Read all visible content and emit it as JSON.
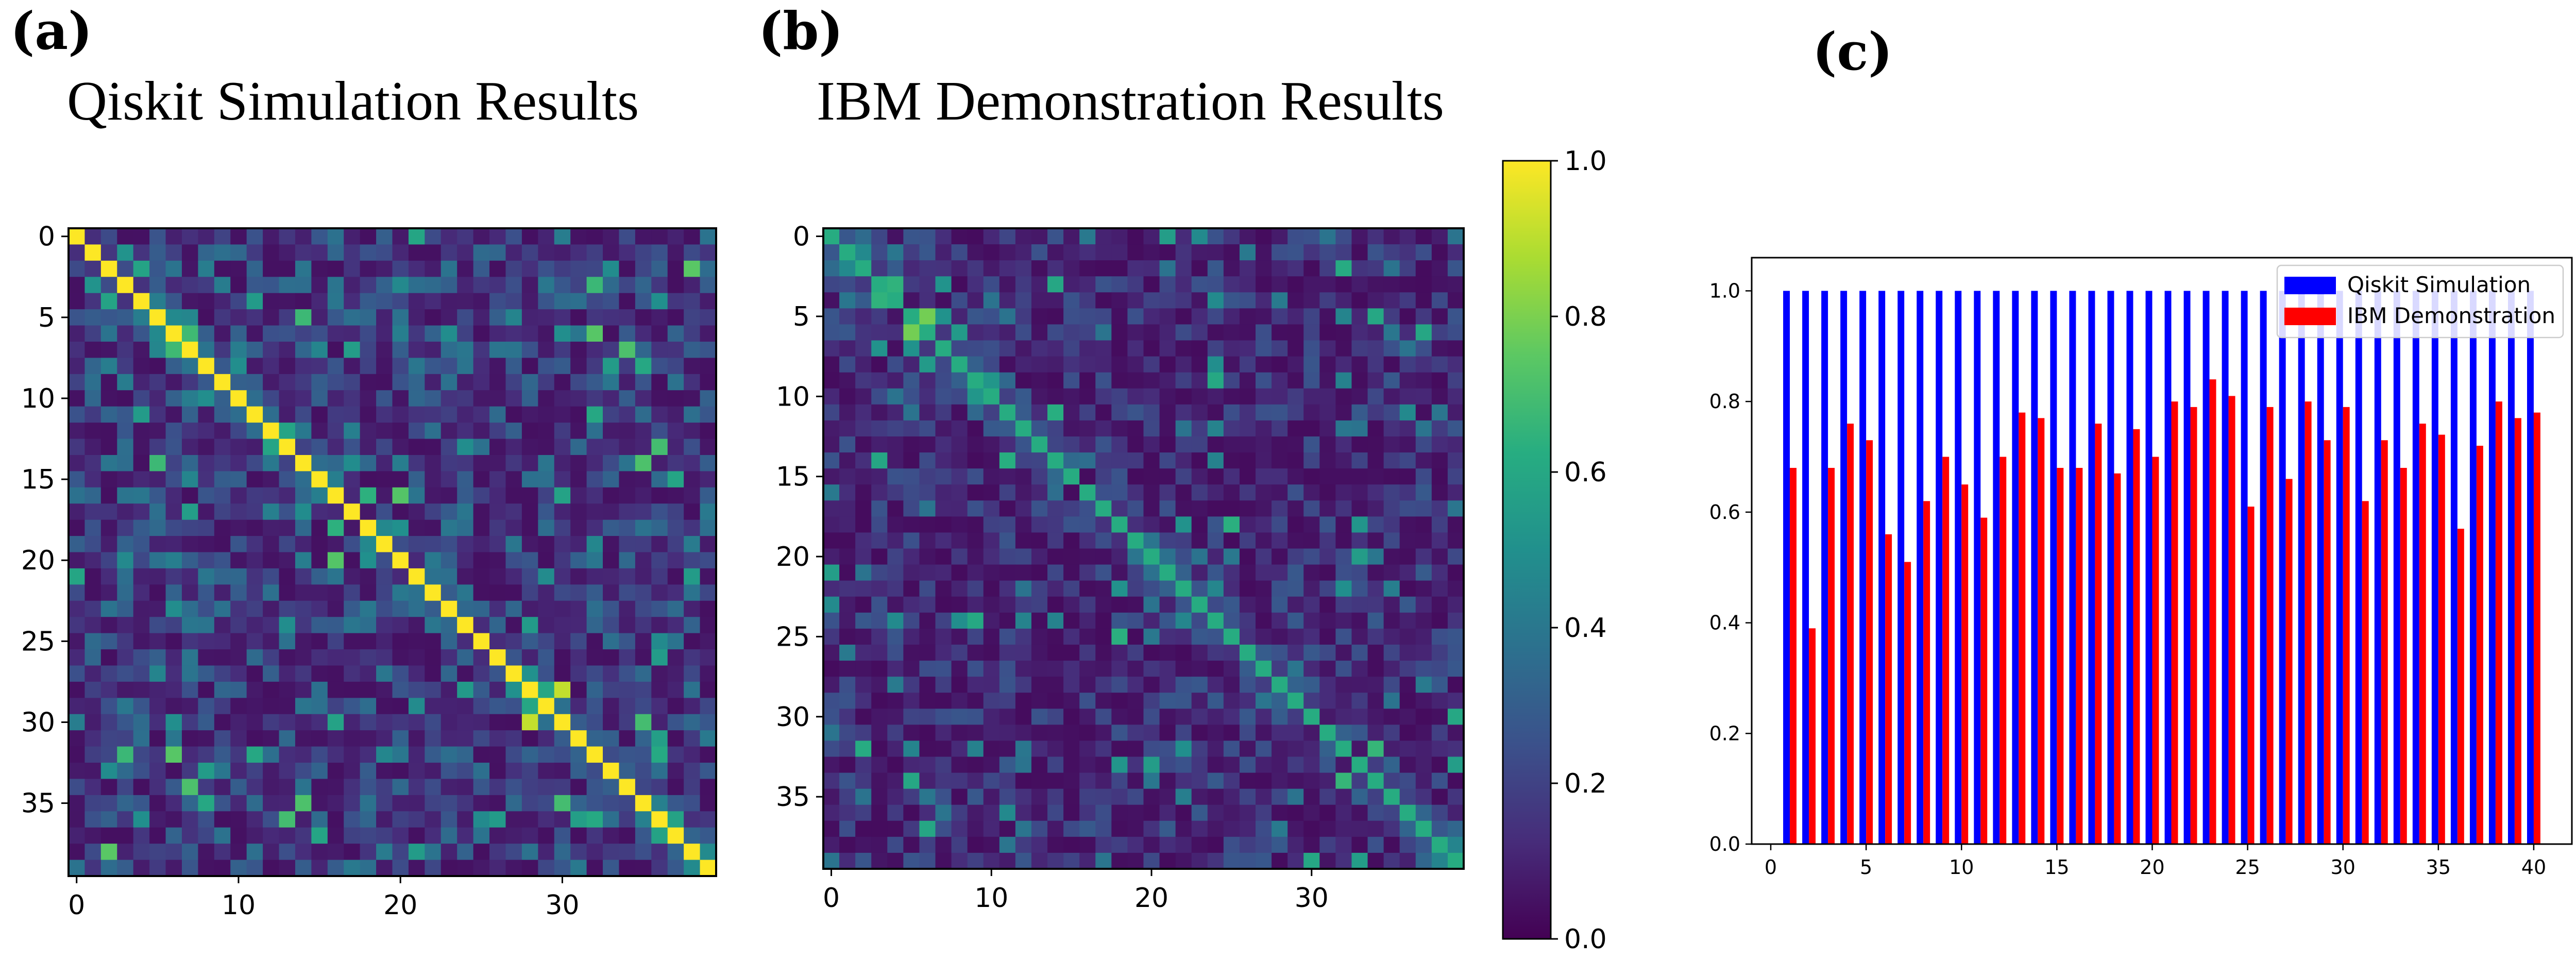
{
  "figure": {
    "panel_a_label": "(a)",
    "panel_b_label": "(b)",
    "panel_c_label": "(c)"
  },
  "colors": {
    "qiskit_bar": "#0000ff",
    "ibm_bar": "#ff0000",
    "viridis": [
      "#440154",
      "#472c7a",
      "#3b518b",
      "#2c718e",
      "#21908d",
      "#27ad81",
      "#5cc863",
      "#aadc32",
      "#fde725"
    ]
  },
  "chart_data": [
    {
      "id": "a",
      "type": "heatmap",
      "title": "Qiskit Simulation Results",
      "size": 40,
      "xticks": [
        0,
        10,
        20,
        30
      ],
      "yticks": [
        0,
        5,
        10,
        15,
        20,
        25,
        30,
        35
      ],
      "values_range": [
        0,
        1
      ],
      "diagonal_value": 1.0,
      "approximate_values_note": "",
      "cells_seed": 11,
      "offdiag_mean": 0.22
    },
    {
      "id": "b",
      "type": "heatmap",
      "title": "IBM Demonstration Results",
      "size": 40,
      "xticks": [
        0,
        10,
        20,
        30
      ],
      "yticks": [
        0,
        5,
        10,
        15,
        20,
        25,
        30,
        35
      ],
      "values_range": [
        0,
        1
      ],
      "diagonal_value": 0.62,
      "cells_seed": 29,
      "offdiag_mean": 0.16,
      "colorbar": {
        "ticks": [
          0.0,
          0.2,
          0.4,
          0.6,
          0.8,
          1.0
        ],
        "tick_labels": [
          "0.0",
          "0.2",
          "0.4",
          "0.6",
          "0.8",
          "1.0"
        ]
      }
    },
    {
      "id": "c",
      "type": "bar",
      "title": "",
      "x": [
        1,
        2,
        3,
        4,
        5,
        6,
        7,
        8,
        9,
        10,
        11,
        12,
        13,
        14,
        15,
        16,
        17,
        18,
        19,
        20,
        21,
        22,
        23,
        24,
        25,
        26,
        27,
        28,
        29,
        30,
        31,
        32,
        33,
        34,
        35,
        36,
        37,
        38,
        39,
        40
      ],
      "series": [
        {
          "name": "Qiskit Simulation",
          "values": [
            1,
            1,
            1,
            1,
            1,
            1,
            1,
            1,
            1,
            1,
            1,
            1,
            1,
            1,
            1,
            1,
            1,
            1,
            1,
            1,
            1,
            1,
            1,
            1,
            1,
            1,
            1,
            1,
            1,
            1,
            1,
            1,
            1,
            1,
            1,
            1,
            1,
            1,
            1,
            1
          ]
        },
        {
          "name": "IBM Demonstration",
          "values": [
            0.68,
            0.39,
            0.68,
            0.76,
            0.73,
            0.56,
            0.51,
            0.62,
            0.7,
            0.65,
            0.59,
            0.7,
            0.78,
            0.77,
            0.68,
            0.68,
            0.76,
            0.67,
            0.75,
            0.7,
            0.8,
            0.79,
            0.84,
            0.81,
            0.61,
            0.79,
            0.66,
            0.8,
            0.73,
            0.79,
            0.62,
            0.73,
            0.68,
            0.76,
            0.74,
            0.57,
            0.72,
            0.8,
            0.77,
            0.78
          ]
        }
      ],
      "xticks": [
        0,
        5,
        10,
        15,
        20,
        25,
        30,
        35,
        40
      ],
      "yticks": [
        0.0,
        0.2,
        0.4,
        0.6,
        0.8,
        1.0
      ],
      "ytick_labels": [
        "0.0",
        "0.2",
        "0.4",
        "0.6",
        "0.8",
        "1.0"
      ],
      "xlim": [
        -1,
        42
      ],
      "ylim": [
        0,
        1.06
      ],
      "legend_position": "top-right"
    }
  ]
}
